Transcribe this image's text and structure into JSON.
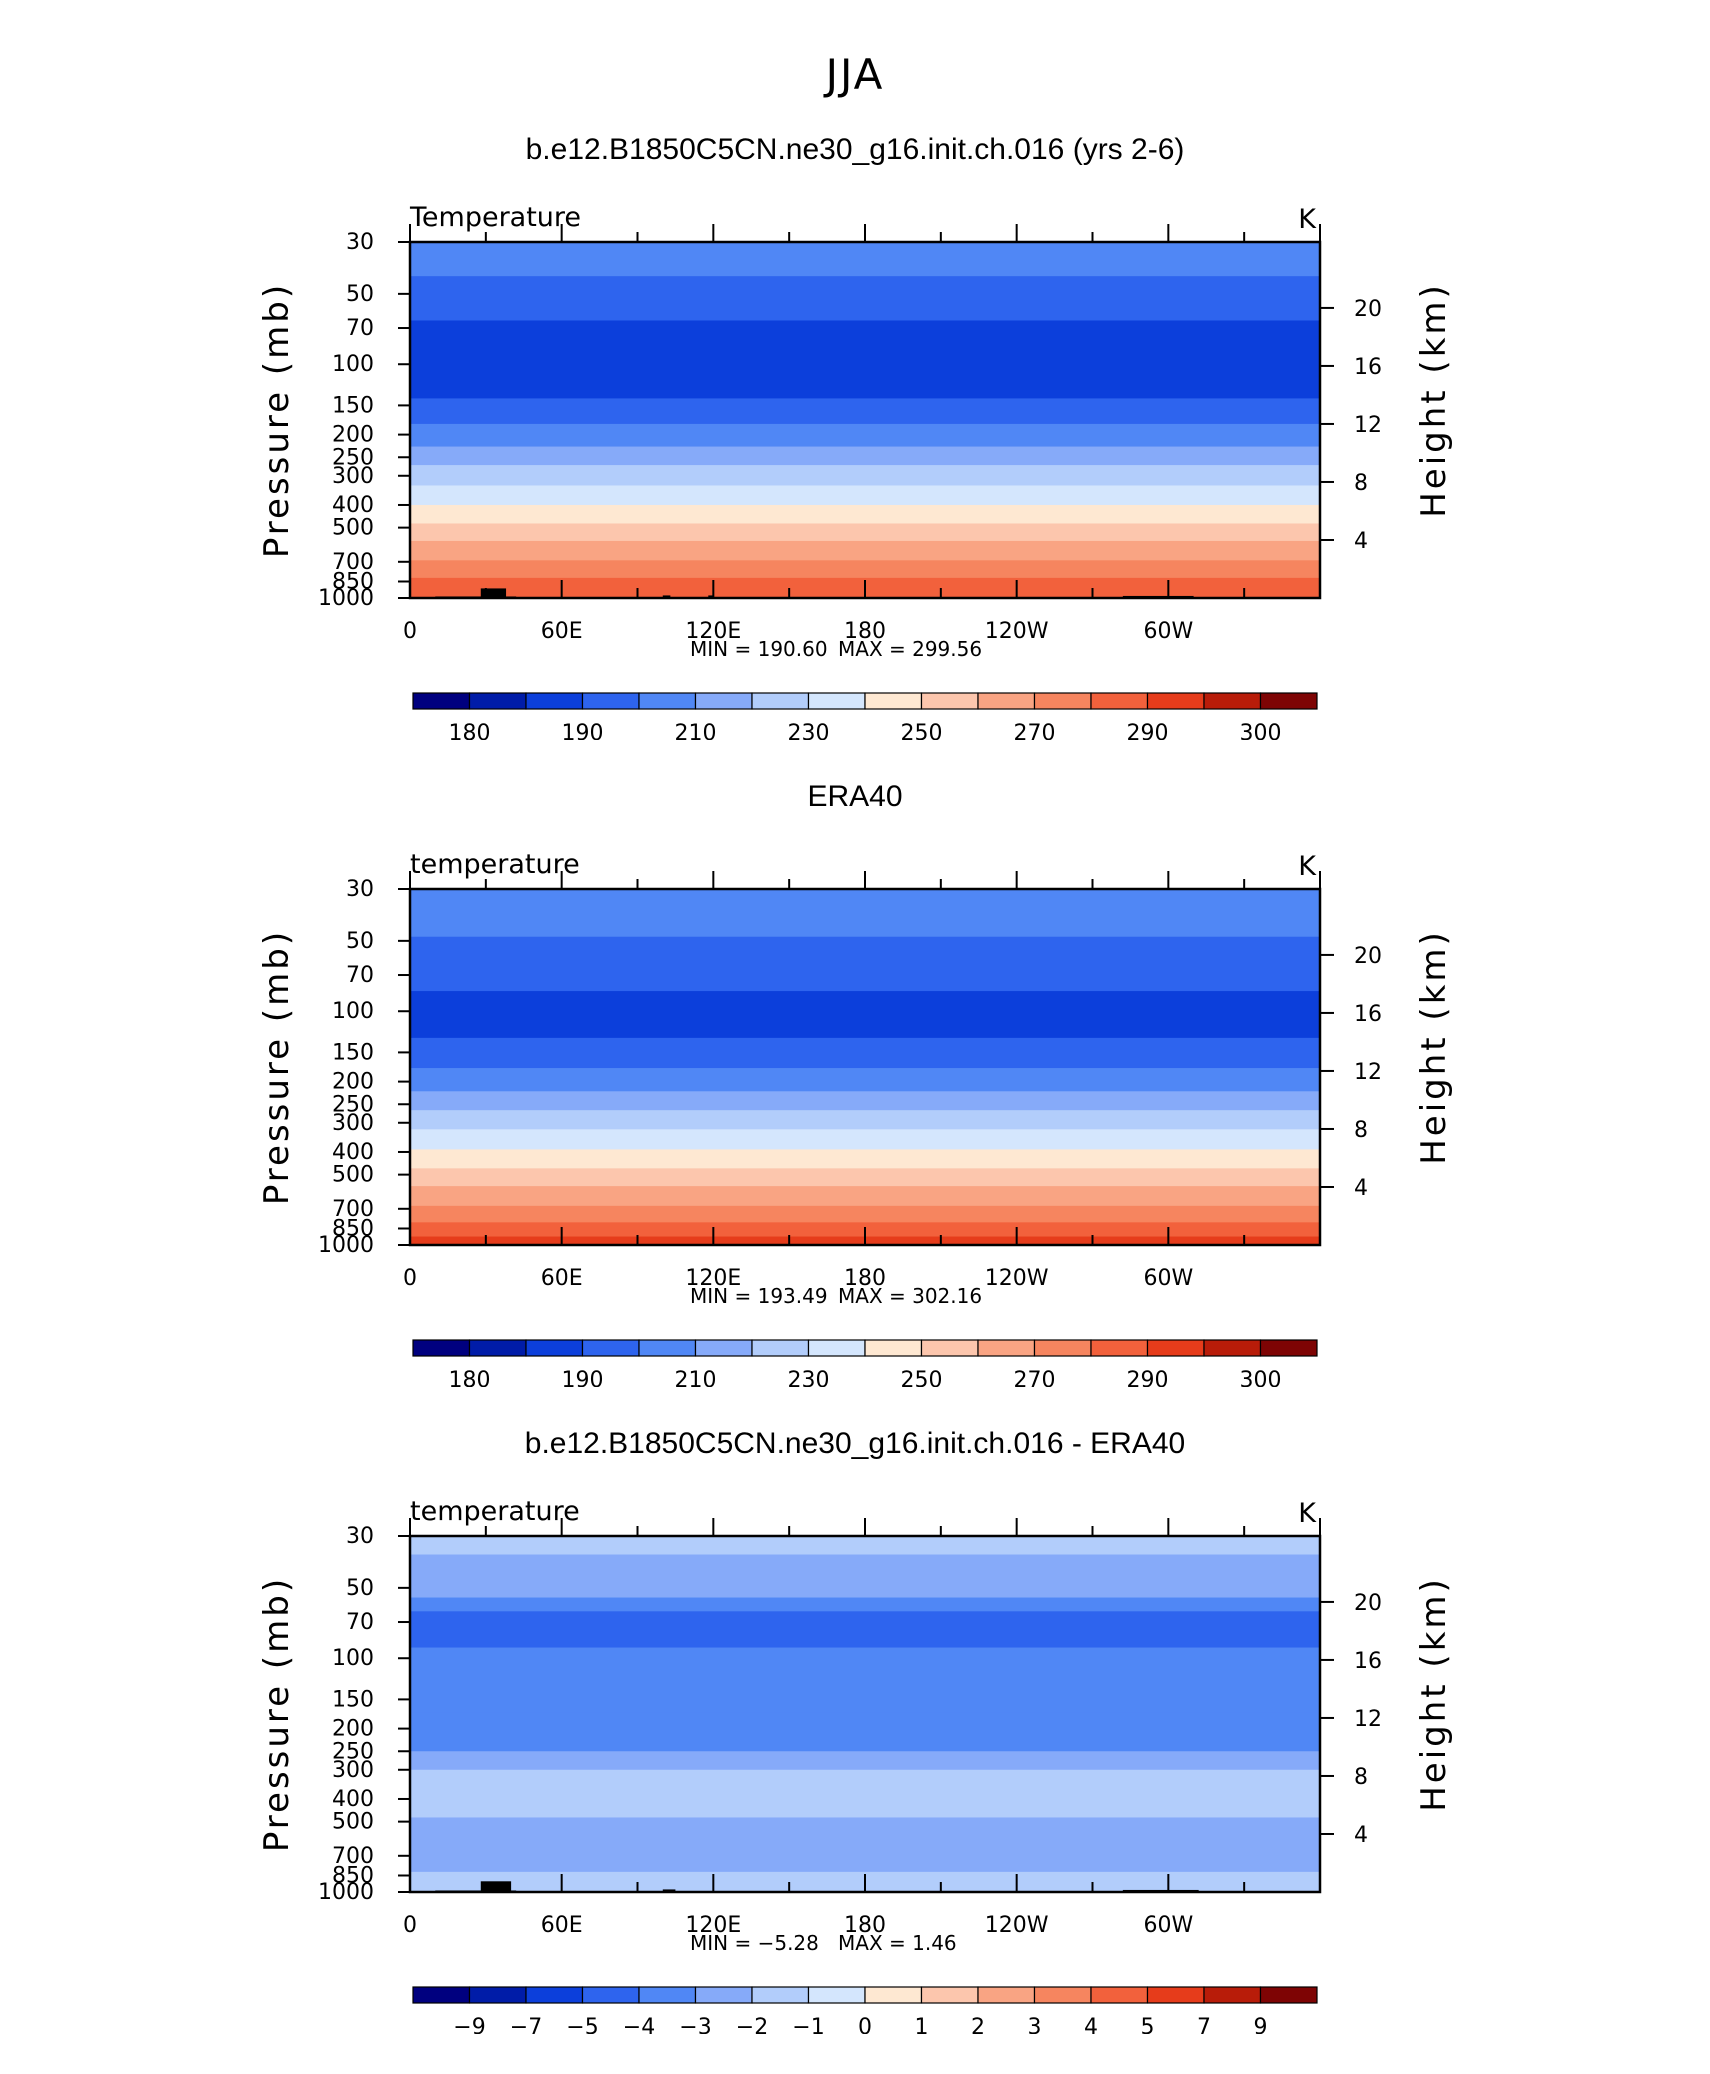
{
  "figure": {
    "title": "JJA"
  },
  "chart_data": [
    {
      "type": "heatmap",
      "title": "b.e12.B1850C5CN.ne30_g16.init.ch.016 (yrs 2-6)",
      "left_label": "Temperature",
      "units": "K",
      "ylabel": "Pressure (mb)",
      "ylabel_right": "Height (km)",
      "xticks": [
        "0",
        "60E",
        "120E",
        "180",
        "120W",
        "60W"
      ],
      "yticks": [
        "30",
        "50",
        "70",
        "100",
        "150",
        "200",
        "250",
        "300",
        "400",
        "500",
        "700",
        "850",
        "1000"
      ],
      "yticks_right": [
        "20",
        "16",
        "12",
        "8",
        "4"
      ],
      "min_label": "MIN = 190.60",
      "max_label": "MAX = 299.56",
      "min": 190.6,
      "max": 299.56,
      "colorbar_labels": [
        "180",
        "190",
        "210",
        "230",
        "250",
        "270",
        "290",
        "300"
      ],
      "levels": [
        {
          "p_top": 30,
          "p_bot": 42,
          "bin": 4
        },
        {
          "p_top": 42,
          "p_bot": 65,
          "bin": 3
        },
        {
          "p_top": 65,
          "p_bot": 140,
          "bin": 2
        },
        {
          "p_top": 140,
          "p_bot": 180,
          "bin": 3
        },
        {
          "p_top": 180,
          "p_bot": 225,
          "bin": 4
        },
        {
          "p_top": 225,
          "p_bot": 270,
          "bin": 5
        },
        {
          "p_top": 270,
          "p_bot": 330,
          "bin": 6
        },
        {
          "p_top": 330,
          "p_bot": 400,
          "bin": 7
        },
        {
          "p_top": 400,
          "p_bot": 480,
          "bin": 8
        },
        {
          "p_top": 480,
          "p_bot": 570,
          "bin": 9
        },
        {
          "p_top": 570,
          "p_bot": 690,
          "bin": 10
        },
        {
          "p_top": 690,
          "p_bot": 820,
          "bin": 11
        },
        {
          "p_top": 820,
          "p_bot": 1000,
          "bin": 12
        }
      ],
      "terrain": [
        {
          "lon0": 10,
          "lon1": 42,
          "p": 985
        },
        {
          "lon0": 28,
          "lon1": 38,
          "p": 910
        },
        {
          "lon0": 100,
          "lon1": 103,
          "p": 975
        },
        {
          "lon0": 118,
          "lon1": 120,
          "p": 975
        },
        {
          "lon0": 282,
          "lon1": 310,
          "p": 980
        }
      ]
    },
    {
      "type": "heatmap",
      "title": "ERA40",
      "left_label": "temperature",
      "units": "K",
      "ylabel": "Pressure (mb)",
      "ylabel_right": "Height (km)",
      "xticks": [
        "0",
        "60E",
        "120E",
        "180",
        "120W",
        "60W"
      ],
      "yticks": [
        "30",
        "50",
        "70",
        "100",
        "150",
        "200",
        "250",
        "300",
        "400",
        "500",
        "700",
        "850",
        "1000"
      ],
      "yticks_right": [
        "20",
        "16",
        "12",
        "8",
        "4"
      ],
      "min_label": "MIN = 193.49",
      "max_label": "MAX = 302.16",
      "min": 193.49,
      "max": 302.16,
      "colorbar_labels": [
        "180",
        "190",
        "210",
        "230",
        "250",
        "270",
        "290",
        "300"
      ],
      "levels": [
        {
          "p_top": 30,
          "p_bot": 48,
          "bin": 4
        },
        {
          "p_top": 48,
          "p_bot": 82,
          "bin": 3
        },
        {
          "p_top": 82,
          "p_bot": 130,
          "bin": 2
        },
        {
          "p_top": 130,
          "p_bot": 175,
          "bin": 3
        },
        {
          "p_top": 175,
          "p_bot": 220,
          "bin": 4
        },
        {
          "p_top": 220,
          "p_bot": 265,
          "bin": 5
        },
        {
          "p_top": 265,
          "p_bot": 320,
          "bin": 6
        },
        {
          "p_top": 320,
          "p_bot": 390,
          "bin": 7
        },
        {
          "p_top": 390,
          "p_bot": 470,
          "bin": 8
        },
        {
          "p_top": 470,
          "p_bot": 560,
          "bin": 9
        },
        {
          "p_top": 560,
          "p_bot": 680,
          "bin": 10
        },
        {
          "p_top": 680,
          "p_bot": 800,
          "bin": 11
        },
        {
          "p_top": 800,
          "p_bot": 920,
          "bin": 12
        },
        {
          "p_top": 920,
          "p_bot": 1000,
          "bin": 13
        }
      ],
      "terrain": []
    },
    {
      "type": "heatmap",
      "title": "b.e12.B1850C5CN.ne30_g16.init.ch.016 - ERA40",
      "left_label": "temperature",
      "units": "K",
      "ylabel": "Pressure (mb)",
      "ylabel_right": "Height (km)",
      "xticks": [
        "0",
        "60E",
        "120E",
        "180",
        "120W",
        "60W"
      ],
      "yticks": [
        "30",
        "50",
        "70",
        "100",
        "150",
        "200",
        "250",
        "300",
        "400",
        "500",
        "700",
        "850",
        "1000"
      ],
      "yticks_right": [
        "20",
        "16",
        "12",
        "8",
        "4"
      ],
      "min_label": "MIN = −5.28",
      "max_label": "MAX = 1.46",
      "min": -5.28,
      "max": 1.46,
      "colorbar_labels": [
        "−9",
        "−7",
        "−5",
        "−4",
        "−3",
        "−2",
        "−1",
        "0",
        "1",
        "2",
        "3",
        "4",
        "5",
        "7",
        "9"
      ],
      "levels": [
        {
          "p_top": 30,
          "p_bot": 36,
          "bin": 6
        },
        {
          "p_top": 36,
          "p_bot": 55,
          "bin": 5
        },
        {
          "p_top": 55,
          "p_bot": 63,
          "bin": 4
        },
        {
          "p_top": 63,
          "p_bot": 90,
          "bin": 3
        },
        {
          "p_top": 90,
          "p_bot": 120,
          "bin": 4
        },
        {
          "p_top": 120,
          "p_bot": 170,
          "bin": 4
        },
        {
          "p_top": 170,
          "p_bot": 250,
          "bin": 4
        },
        {
          "p_top": 250,
          "p_bot": 300,
          "bin": 5
        },
        {
          "p_top": 300,
          "p_bot": 480,
          "bin": 6
        },
        {
          "p_top": 480,
          "p_bot": 820,
          "bin": 5
        },
        {
          "p_top": 820,
          "p_bot": 1000,
          "bin": 6
        }
      ],
      "terrain": [
        {
          "lon0": 10,
          "lon1": 42,
          "p": 985
        },
        {
          "lon0": 28,
          "lon1": 40,
          "p": 900
        },
        {
          "lon0": 100,
          "lon1": 105,
          "p": 975
        },
        {
          "lon0": 282,
          "lon1": 312,
          "p": 980
        }
      ]
    }
  ],
  "colors": {
    "abs_palette": [
      "#00007f",
      "#001ca8",
      "#0c3fdb",
      "#2e64ee",
      "#5087f5",
      "#86aaf9",
      "#b2cdfb",
      "#d4e6fd",
      "#fee8d2",
      "#fcc6ad",
      "#f9a483",
      "#f6855f",
      "#f2613c",
      "#e63c1b",
      "#b81c09",
      "#7e0404"
    ],
    "diff_palette": [
      "#00007f",
      "#001ca8",
      "#0c3fdb",
      "#2e64ee",
      "#5087f5",
      "#86aaf9",
      "#b2cdfb",
      "#d4e6fd",
      "#fee8d2",
      "#fcc6ad",
      "#f9a483",
      "#f6855f",
      "#f2613c",
      "#e63c1b",
      "#b81c09",
      "#7e0404"
    ],
    "terrain": "#000000"
  }
}
